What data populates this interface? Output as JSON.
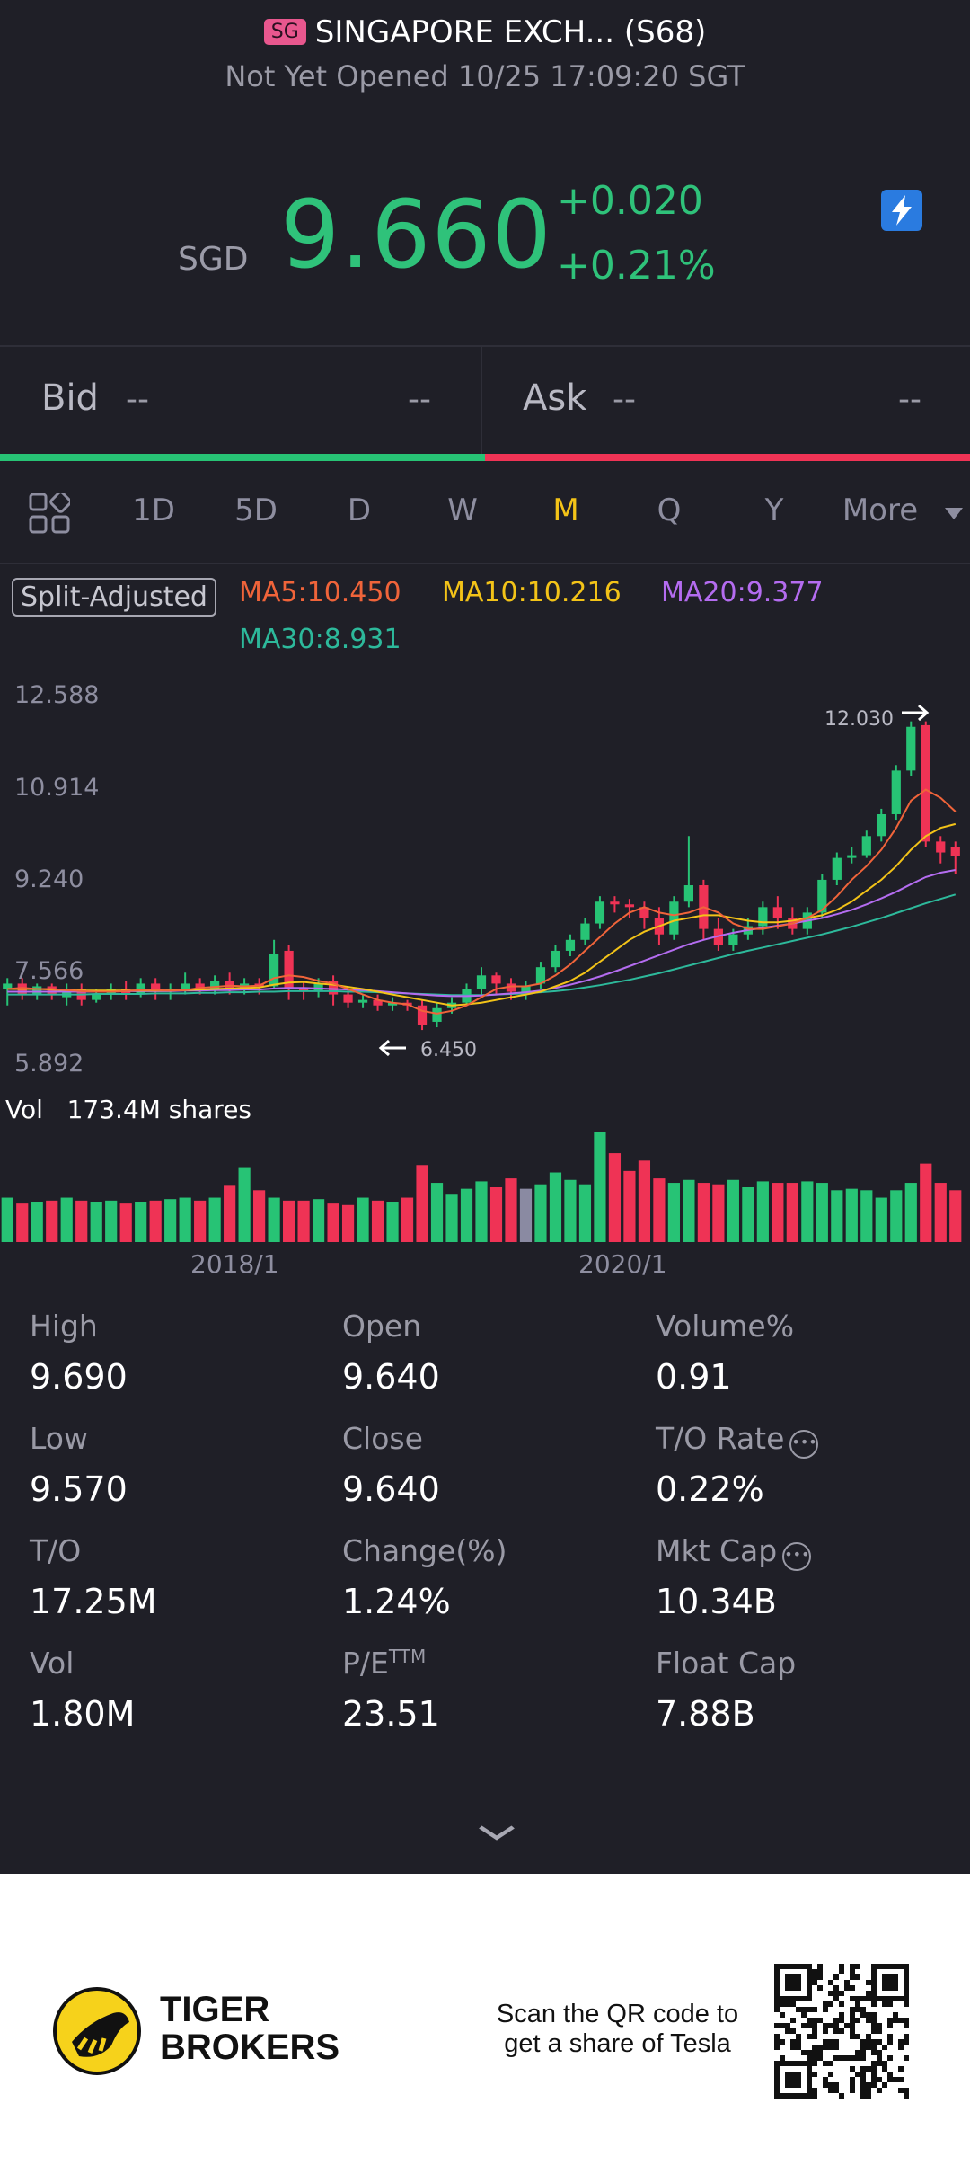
{
  "header": {
    "badge": "SG",
    "title": "SINGAPORE EXCH... (S68)",
    "status": "Not Yet Opened 10/25 17:09:20 SGT"
  },
  "quote": {
    "currency": "SGD",
    "price": "9.660",
    "change": "+0.020",
    "change_pct": "+0.21%"
  },
  "bid_ask": {
    "bid_label": "Bid",
    "bid_price": "--",
    "bid_size": "--",
    "ask_label": "Ask",
    "ask_price": "--",
    "ask_size": "--"
  },
  "tabs": [
    "1D",
    "5D",
    "D",
    "W",
    "M",
    "Q",
    "Y",
    "More"
  ],
  "active_tab": "M",
  "indicators": {
    "split_label": "Split-Adjusted",
    "ma5": "MA5:10.450",
    "ma10": "MA10:10.216",
    "ma20": "MA20:9.377",
    "ma30": "MA30:8.931"
  },
  "chart": {
    "y_labels": [
      "12.588",
      "10.914",
      "9.240",
      "7.566",
      "5.892"
    ],
    "high_marker": "12.030",
    "low_marker": "6.450",
    "vol_label": "Vol",
    "vol_value": "173.4M shares",
    "date_labels": [
      "2018/1",
      "2020/1"
    ]
  },
  "chart_data": {
    "type": "candlestick",
    "interval": "monthly",
    "ylim": [
      5.892,
      12.588
    ],
    "max_marker": 12.03,
    "min_marker": 6.45,
    "candles": [
      [
        7.2,
        7.3,
        6.9,
        7.4
      ],
      [
        7.3,
        7.1,
        7.0,
        7.4
      ],
      [
        7.1,
        7.25,
        7.0,
        7.3
      ],
      [
        7.25,
        7.1,
        7.0,
        7.3
      ],
      [
        7.05,
        7.2,
        6.9,
        7.3
      ],
      [
        7.2,
        7.0,
        6.9,
        7.3
      ],
      [
        7.0,
        7.1,
        6.95,
        7.2
      ],
      [
        7.1,
        7.2,
        7.0,
        7.3
      ],
      [
        7.2,
        7.1,
        7.0,
        7.35
      ],
      [
        7.1,
        7.3,
        7.05,
        7.4
      ],
      [
        7.3,
        7.15,
        7.0,
        7.4
      ],
      [
        7.15,
        7.2,
        7.0,
        7.3
      ],
      [
        7.2,
        7.3,
        7.1,
        7.5
      ],
      [
        7.3,
        7.2,
        7.1,
        7.4
      ],
      [
        7.2,
        7.35,
        7.1,
        7.45
      ],
      [
        7.35,
        7.2,
        7.1,
        7.5
      ],
      [
        7.2,
        7.3,
        7.1,
        7.4
      ],
      [
        7.3,
        7.25,
        7.1,
        7.4
      ],
      [
        7.25,
        7.85,
        7.2,
        8.1
      ],
      [
        7.9,
        7.2,
        7.0,
        8.0
      ],
      [
        7.2,
        7.15,
        7.0,
        7.35
      ],
      [
        7.15,
        7.3,
        7.05,
        7.4
      ],
      [
        7.35,
        7.1,
        6.9,
        7.45
      ],
      [
        7.1,
        6.95,
        6.85,
        7.2
      ],
      [
        6.95,
        7.0,
        6.85,
        7.1
      ],
      [
        7.0,
        6.9,
        6.8,
        7.1
      ],
      [
        6.9,
        6.95,
        6.8,
        7.05
      ],
      [
        6.95,
        6.9,
        6.8,
        7.0
      ],
      [
        6.9,
        6.55,
        6.45,
        7.0
      ],
      [
        6.6,
        6.85,
        6.5,
        6.95
      ],
      [
        6.85,
        6.95,
        6.75,
        7.05
      ],
      [
        6.95,
        7.2,
        6.9,
        7.3
      ],
      [
        7.2,
        7.45,
        7.1,
        7.6
      ],
      [
        7.45,
        7.3,
        7.1,
        7.5
      ],
      [
        7.3,
        7.15,
        7.0,
        7.4
      ],
      [
        7.1,
        7.25,
        7.0,
        7.35
      ],
      [
        7.3,
        7.6,
        7.2,
        7.7
      ],
      [
        7.6,
        7.9,
        7.5,
        8.0
      ],
      [
        7.9,
        8.1,
        7.8,
        8.2
      ],
      [
        8.1,
        8.4,
        8.0,
        8.5
      ],
      [
        8.4,
        8.8,
        8.3,
        8.9
      ],
      [
        8.8,
        8.75,
        8.6,
        8.9
      ],
      [
        8.75,
        8.7,
        8.5,
        8.85
      ],
      [
        8.7,
        8.5,
        8.3,
        8.8
      ],
      [
        8.5,
        8.2,
        8.0,
        8.7
      ],
      [
        8.2,
        8.8,
        8.1,
        8.9
      ],
      [
        8.8,
        9.1,
        8.7,
        10.0
      ],
      [
        9.1,
        8.3,
        8.1,
        9.2
      ],
      [
        8.3,
        8.0,
        7.9,
        8.5
      ],
      [
        8.0,
        8.2,
        7.9,
        8.3
      ],
      [
        8.2,
        8.35,
        8.1,
        8.5
      ],
      [
        8.35,
        8.7,
        8.2,
        8.8
      ],
      [
        8.7,
        8.5,
        8.3,
        8.9
      ],
      [
        8.5,
        8.3,
        8.2,
        8.7
      ],
      [
        8.3,
        8.6,
        8.2,
        8.7
      ],
      [
        8.6,
        9.2,
        8.5,
        9.3
      ],
      [
        9.2,
        9.6,
        9.1,
        9.7
      ],
      [
        9.6,
        9.65,
        9.5,
        9.8
      ],
      [
        9.65,
        10.0,
        9.6,
        10.1
      ],
      [
        10.0,
        10.4,
        9.9,
        10.5
      ],
      [
        10.4,
        11.2,
        10.3,
        11.3
      ],
      [
        11.2,
        12.0,
        11.1,
        12.1
      ],
      [
        12.03,
        9.9,
        9.8,
        12.1
      ],
      [
        9.9,
        9.7,
        9.5,
        10.0
      ],
      [
        9.8,
        9.64,
        9.3,
        9.9
      ]
    ],
    "ma5": [
      7.2,
      7.22,
      7.2,
      7.2,
      7.18,
      7.16,
      7.15,
      7.15,
      7.16,
      7.18,
      7.18,
      7.17,
      7.18,
      7.22,
      7.24,
      7.26,
      7.25,
      7.26,
      7.4,
      7.45,
      7.42,
      7.35,
      7.3,
      7.2,
      7.1,
      7.0,
      6.95,
      6.92,
      6.8,
      6.75,
      6.8,
      6.9,
      7.05,
      7.2,
      7.25,
      7.25,
      7.3,
      7.45,
      7.65,
      7.9,
      8.15,
      8.4,
      8.6,
      8.7,
      8.6,
      8.55,
      8.6,
      8.7,
      8.6,
      8.4,
      8.3,
      8.3,
      8.35,
      8.4,
      8.5,
      8.65,
      8.9,
      9.2,
      9.45,
      9.75,
      10.15,
      10.65,
      10.85,
      10.7,
      10.45
    ],
    "ma10": [
      7.2,
      7.2,
      7.2,
      7.19,
      7.18,
      7.17,
      7.17,
      7.17,
      7.17,
      7.17,
      7.17,
      7.17,
      7.18,
      7.19,
      7.2,
      7.21,
      7.22,
      7.23,
      7.28,
      7.32,
      7.33,
      7.3,
      7.28,
      7.24,
      7.2,
      7.15,
      7.1,
      7.05,
      7.0,
      6.95,
      6.9,
      6.92,
      6.95,
      7.0,
      7.05,
      7.1,
      7.15,
      7.25,
      7.35,
      7.5,
      7.7,
      7.9,
      8.1,
      8.25,
      8.35,
      8.45,
      8.5,
      8.55,
      8.55,
      8.5,
      8.45,
      8.42,
      8.42,
      8.45,
      8.5,
      8.55,
      8.65,
      8.8,
      9.0,
      9.2,
      9.45,
      9.75,
      10.0,
      10.15,
      10.22
    ],
    "ma20": [
      7.15,
      7.15,
      7.15,
      7.15,
      7.15,
      7.15,
      7.15,
      7.15,
      7.16,
      7.16,
      7.16,
      7.16,
      7.17,
      7.17,
      7.18,
      7.18,
      7.19,
      7.19,
      7.21,
      7.22,
      7.22,
      7.21,
      7.2,
      7.19,
      7.18,
      7.16,
      7.14,
      7.12,
      7.1,
      7.08,
      7.07,
      7.07,
      7.08,
      7.1,
      7.12,
      7.14,
      7.17,
      7.22,
      7.28,
      7.35,
      7.43,
      7.52,
      7.62,
      7.72,
      7.82,
      7.92,
      8.02,
      8.1,
      8.17,
      8.23,
      8.28,
      8.32,
      8.36,
      8.4,
      8.45,
      8.5,
      8.57,
      8.65,
      8.75,
      8.86,
      8.98,
      9.12,
      9.25,
      9.33,
      9.38
    ],
    "ma30": [
      7.1,
      7.1,
      7.1,
      7.1,
      7.1,
      7.1,
      7.11,
      7.11,
      7.11,
      7.11,
      7.12,
      7.12,
      7.12,
      7.13,
      7.13,
      7.14,
      7.14,
      7.15,
      7.15,
      7.16,
      7.16,
      7.16,
      7.16,
      7.15,
      7.15,
      7.14,
      7.13,
      7.12,
      7.11,
      7.1,
      7.09,
      7.09,
      7.09,
      7.1,
      7.11,
      7.12,
      7.14,
      7.16,
      7.19,
      7.23,
      7.27,
      7.32,
      7.37,
      7.43,
      7.49,
      7.56,
      7.63,
      7.7,
      7.77,
      7.84,
      7.9,
      7.96,
      8.02,
      8.08,
      8.14,
      8.2,
      8.27,
      8.34,
      8.42,
      8.5,
      8.59,
      8.68,
      8.77,
      8.85,
      8.93
    ],
    "volumes": [
      3.0,
      2.6,
      2.7,
      2.8,
      3.0,
      2.8,
      2.7,
      2.8,
      2.6,
      2.7,
      2.8,
      2.9,
      3.0,
      2.8,
      3.0,
      3.8,
      5.0,
      3.5,
      3.0,
      2.8,
      2.8,
      2.9,
      2.6,
      2.5,
      3.0,
      2.8,
      2.7,
      3.0,
      5.2,
      4.0,
      3.2,
      3.6,
      4.1,
      3.7,
      4.3,
      3.6,
      3.9,
      4.7,
      4.2,
      3.9,
      7.4,
      6.0,
      4.8,
      5.5,
      4.3,
      4.0,
      4.2,
      4.0,
      3.9,
      4.2,
      3.7,
      4.1,
      4.0,
      4.0,
      4.1,
      4.0,
      3.5,
      3.6,
      3.5,
      3.0,
      3.5,
      4.0,
      5.3,
      4.0,
      3.5
    ],
    "x_ticks": [
      "2018/1",
      "2020/1"
    ]
  },
  "stats": [
    {
      "label": "High",
      "value": "9.690"
    },
    {
      "label": "Open",
      "value": "9.640"
    },
    {
      "label": "Volume%",
      "value": "0.91"
    },
    {
      "label": "Low",
      "value": "9.570"
    },
    {
      "label": "Close",
      "value": "9.640"
    },
    {
      "label": "T/O Rate",
      "value": "0.22%"
    },
    {
      "label": "T/O",
      "value": "17.25M"
    },
    {
      "label": "Change(%)",
      "value": "1.24%"
    },
    {
      "label": "Mkt Cap",
      "value": "10.34B"
    },
    {
      "label": "Vol",
      "value": "1.80M"
    },
    {
      "label": "P/E",
      "value": "23.51"
    },
    {
      "label": "Float Cap",
      "value": "7.88B"
    }
  ],
  "pe_superscript": "TTM",
  "footer": {
    "brand_line1": "TIGER",
    "brand_line2": "BROKERS",
    "scan_line1": "Scan the QR code to",
    "scan_line2": "get a share of Tesla"
  },
  "colors": {
    "up": "#27c375",
    "down": "#ef3355",
    "neutral": "#8a8aa2",
    "ma5": "#f0643a",
    "ma10": "#f3c318",
    "ma20": "#b46cf0",
    "ma30": "#2db99b",
    "background": "#1f1f27"
  }
}
